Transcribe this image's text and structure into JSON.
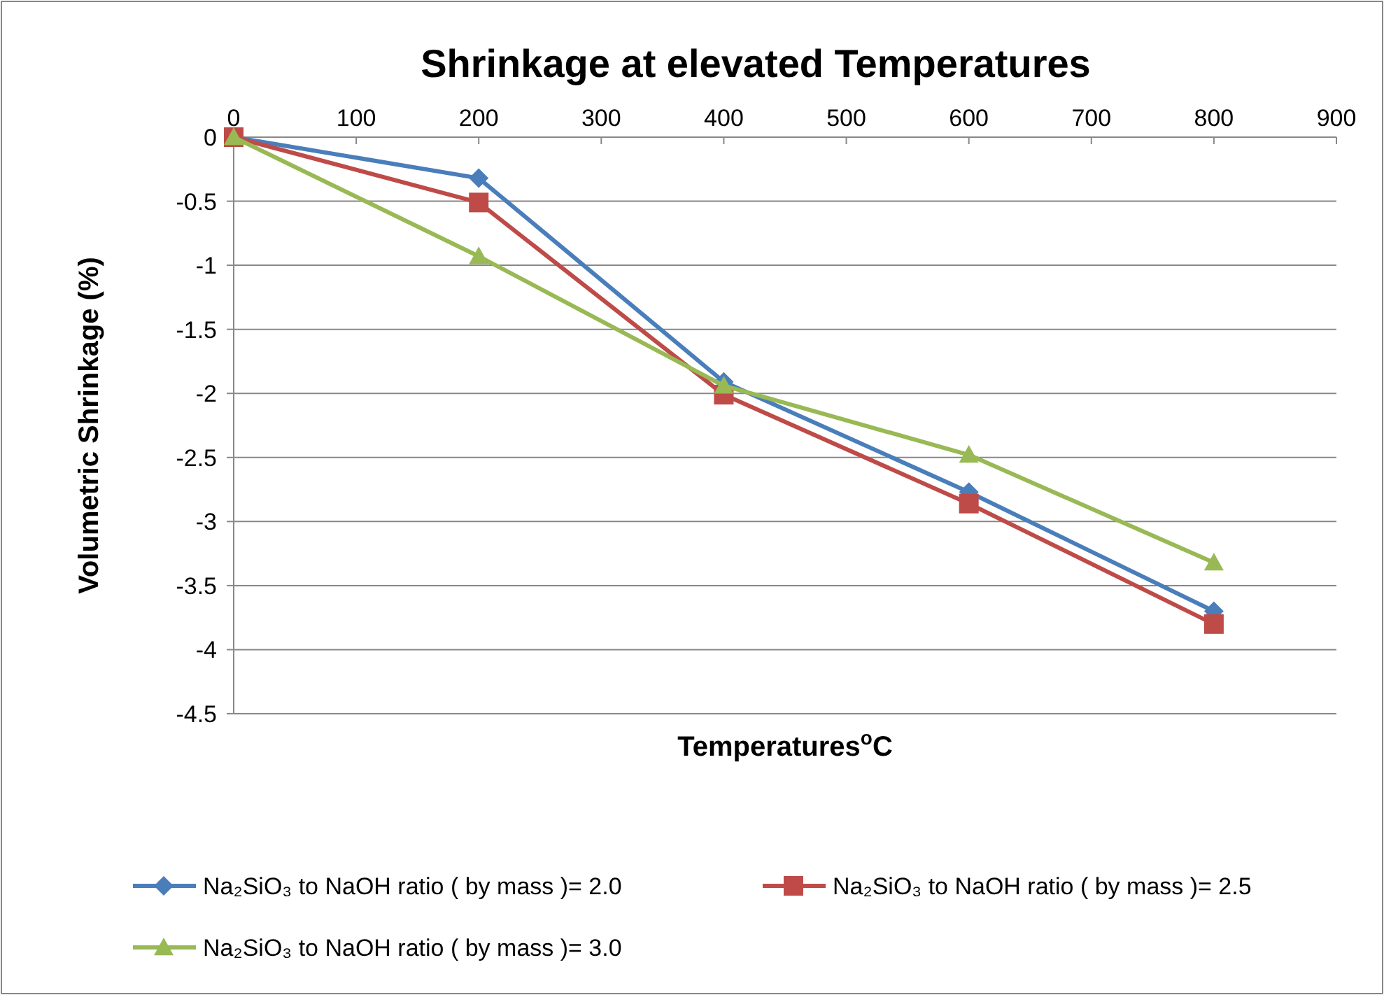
{
  "chart_data": {
    "type": "line",
    "title": "Shrinkage at elevated Temperatures",
    "xlabel": "Temperatures$^{o}$C",
    "ylabel": "Volumetric  Shrinkage (%)",
    "x": [
      0,
      200,
      400,
      600,
      800
    ],
    "series": [
      {
        "name": "Na₂SiO₃ to NaOH ratio ( by mass )= 2.0",
        "color": "#4a7ebb",
        "marker": "diamond",
        "values": [
          0,
          -0.32,
          -1.91,
          -2.77,
          -3.7
        ]
      },
      {
        "name": "Na₂SiO₃ to NaOH ratio ( by mass )= 2.5",
        "color": "#be4b48",
        "marker": "square",
        "values": [
          0,
          -0.51,
          -2.01,
          -2.86,
          -3.8
        ]
      },
      {
        "name": "Na₂SiO₃ to NaOH ratio ( by mass )= 3.0",
        "color": "#98b954",
        "marker": "triangle",
        "values": [
          0,
          -0.93,
          -1.94,
          -2.48,
          -3.32
        ]
      }
    ],
    "xlim": [
      0,
      900
    ],
    "xticks": [
      0,
      100,
      200,
      300,
      400,
      500,
      600,
      700,
      800,
      900
    ],
    "ylim": [
      -4.5,
      0
    ],
    "yticks": [
      0,
      -0.5,
      -1,
      -1.5,
      -2,
      -2.5,
      -3,
      -3.5,
      -4,
      -4.5
    ],
    "grid": "y",
    "legend": "bottom"
  }
}
